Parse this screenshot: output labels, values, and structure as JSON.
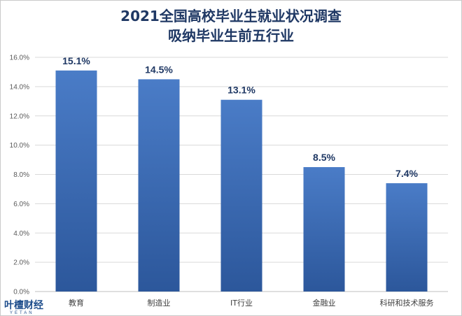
{
  "chart_data": {
    "type": "bar",
    "title_lines": [
      "2021全国高校毕业生就业状况调查",
      "吸纳毕业生前五行业"
    ],
    "categories": [
      "教育",
      "制造业",
      "IT行业",
      "金融业",
      "科研和技术服务"
    ],
    "values": [
      15.1,
      14.5,
      13.1,
      8.5,
      7.4
    ],
    "value_labels": [
      "15.1%",
      "14.5%",
      "13.1%",
      "8.5%",
      "7.4%"
    ],
    "ylim": [
      0,
      16
    ],
    "yticks": [
      "0.0%",
      "2.0%",
      "4.0%",
      "6.0%",
      "8.0%",
      "10.0%",
      "12.0%",
      "14.0%",
      "16.0%"
    ],
    "grid": true,
    "bar_color_top": "#4a7cc7",
    "bar_color_bottom": "#2c579b",
    "xlabel": "",
    "ylabel": ""
  },
  "logo": {
    "text": "叶檀财经",
    "subtext": "YETAN"
  }
}
